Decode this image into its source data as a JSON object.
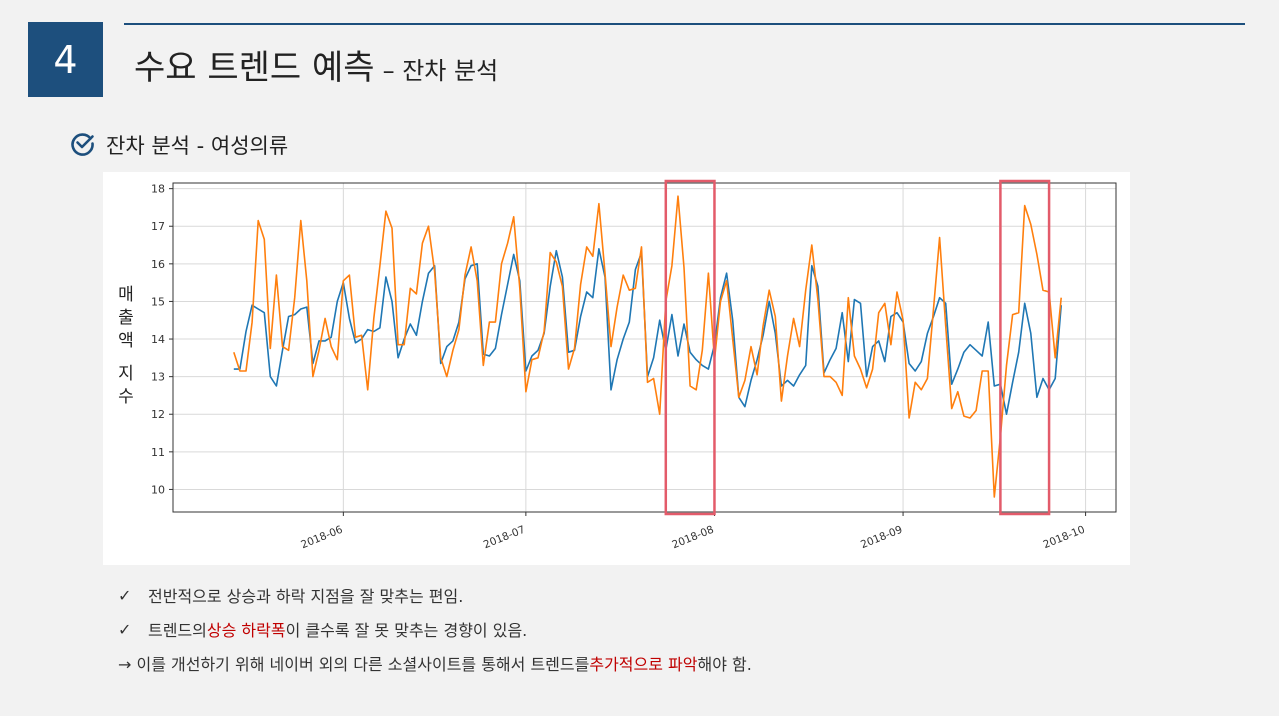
{
  "header": {
    "number": "4",
    "title": "수요 트렌드 예측",
    "subtitle": "– 잔차 분석"
  },
  "section": {
    "label": "잔차 분석 - 여성의류"
  },
  "chart_ylabel": {
    "line1": "매\n출\n액",
    "line2": "지\n수"
  },
  "chart_data": {
    "type": "line",
    "xlabel": "",
    "ylabel": "매출액 지수",
    "ylim": [
      9.4,
      18.15
    ],
    "yticks": [
      10,
      11,
      12,
      13,
      14,
      15,
      16,
      17,
      18
    ],
    "xticks": [
      "2018-06",
      "2018-07",
      "2018-08",
      "2018-09",
      "2018-10"
    ],
    "grid": true,
    "start_date": "2018-05-14",
    "series": [
      {
        "name": "",
        "color": "#1f77b4",
        "values": [
          13.2,
          13.2,
          14.2,
          14.9,
          14.8,
          14.7,
          13.0,
          12.75,
          13.7,
          14.6,
          14.65,
          14.8,
          14.85,
          13.35,
          13.95,
          13.95,
          14.05,
          15.0,
          15.5,
          14.55,
          13.9,
          14.0,
          14.25,
          14.2,
          14.3,
          15.65,
          15.0,
          13.5,
          14.0,
          14.4,
          14.1,
          15.0,
          15.75,
          15.95,
          13.35,
          13.8,
          13.95,
          14.45,
          15.6,
          15.95,
          16.0,
          13.6,
          13.55,
          13.75,
          14.65,
          15.45,
          16.25,
          15.55,
          13.15,
          13.55,
          13.7,
          14.15,
          15.4,
          16.35,
          15.65,
          13.65,
          13.7,
          14.6,
          15.25,
          15.1,
          16.4,
          15.65,
          12.65,
          13.45,
          14.0,
          14.45,
          15.85,
          16.3,
          13.0,
          13.5,
          14.5,
          13.7,
          14.65,
          13.55,
          14.4,
          13.65,
          13.45,
          13.3,
          13.2,
          13.85,
          15.1,
          15.75,
          14.5,
          12.45,
          12.2,
          12.9,
          13.45,
          14.1,
          15.0,
          14.15,
          12.75,
          12.9,
          12.75,
          13.05,
          13.3,
          15.95,
          15.4,
          13.1,
          13.45,
          13.75,
          14.7,
          13.4,
          15.05,
          14.95,
          13.0,
          13.8,
          13.95,
          13.4,
          14.6,
          14.7,
          14.45,
          13.35,
          13.15,
          13.4,
          14.15,
          14.6,
          15.1,
          14.95,
          12.8,
          13.2,
          13.65,
          13.85,
          13.7,
          13.55,
          14.45,
          12.75,
          12.8,
          12.0,
          12.85,
          13.65,
          14.95,
          14.15,
          12.45,
          12.95,
          12.65,
          12.95,
          14.9
        ]
      },
      {
        "name": "",
        "color": "#ff7f0e",
        "values": [
          13.65,
          13.15,
          13.15,
          14.45,
          17.15,
          16.65,
          13.75,
          15.7,
          13.8,
          13.7,
          15.1,
          17.15,
          15.55,
          13.0,
          13.7,
          14.55,
          13.8,
          13.45,
          15.55,
          15.7,
          14.05,
          14.1,
          12.65,
          14.55,
          15.95,
          17.4,
          16.95,
          13.85,
          13.85,
          15.35,
          15.2,
          16.55,
          17.0,
          15.8,
          13.5,
          13.0,
          13.7,
          14.25,
          15.7,
          16.45,
          15.55,
          13.3,
          14.45,
          14.45,
          16.0,
          16.55,
          17.25,
          15.35,
          12.6,
          13.45,
          13.5,
          14.2,
          16.3,
          16.05,
          15.4,
          13.2,
          13.75,
          15.45,
          16.45,
          16.2,
          17.6,
          15.75,
          13.8,
          14.85,
          15.7,
          15.3,
          15.35,
          16.45,
          12.85,
          12.95,
          12.0,
          15.0,
          15.95,
          17.8,
          15.9,
          12.75,
          12.65,
          13.7,
          15.75,
          13.45,
          15.0,
          15.55,
          14.0,
          12.45,
          12.9,
          13.8,
          13.05,
          14.35,
          15.3,
          14.6,
          12.35,
          13.55,
          14.55,
          13.8,
          15.3,
          16.5,
          15.05,
          13.0,
          13.0,
          12.85,
          12.5,
          15.1,
          13.55,
          13.2,
          12.7,
          13.2,
          14.7,
          14.95,
          13.85,
          15.25,
          14.5,
          11.9,
          12.85,
          12.65,
          12.95,
          14.8,
          16.7,
          14.35,
          12.15,
          12.6,
          11.95,
          11.9,
          12.1,
          13.15,
          13.15,
          9.8,
          11.4,
          13.3,
          14.65,
          14.7,
          17.55,
          17.05,
          16.25,
          15.3,
          15.25,
          13.5,
          15.1
        ]
      }
    ],
    "highlight_boxes": [
      {
        "color": "#e35b6a",
        "x_from": "2018-07-24",
        "x_to": "2018-08-01"
      },
      {
        "color": "#e35b6a",
        "x_from": "2018-09-17",
        "x_to": "2018-09-25"
      }
    ]
  },
  "notes": [
    {
      "check": "✓",
      "parts": [
        {
          "text": "전반적으로 상승과 하락 지점을 잘 맞추는  편임."
        }
      ]
    },
    {
      "check": "✓",
      "parts": [
        {
          "text": "트렌드의 "
        },
        {
          "text": "상승 하락폭",
          "red": true
        },
        {
          "text": "이 클수록 잘 못 맞추는 경향이 있음."
        }
      ]
    },
    {
      "check": "",
      "parts": [
        {
          "text": "→ 이를 개선하기 위해  네이버 외의 다른 소셜사이트를 통해서 트렌드를 "
        },
        {
          "text": "추가적으로 파악",
          "red": true
        },
        {
          "text": "해야 함."
        }
      ]
    }
  ]
}
